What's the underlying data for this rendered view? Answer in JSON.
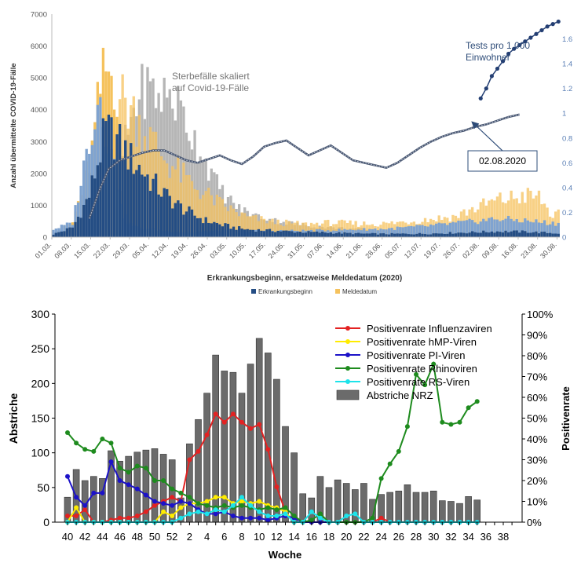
{
  "chart_data": [
    {
      "type": "bar",
      "ylabel": "Anzahl übermittelte COVID-19-Fälle",
      "xlabel": "Erkrankungsbeginn, ersatzweise Meldedatum (2020)",
      "ylim": [
        0,
        7000
      ],
      "y_ticks": [
        "0",
        "1000",
        "2000",
        "3000",
        "4000",
        "5000",
        "6000",
        "7000"
      ],
      "y2lim": [
        0,
        1.8
      ],
      "y2_ticks": [
        "0",
        "0.2",
        "0.4",
        "0.6",
        "0.8",
        "1",
        "1.2",
        "1.4",
        "1.6"
      ],
      "x_ticks": [
        "01.03.",
        "08.03.",
        "15.03.",
        "22.03.",
        "29.03.",
        "05.04.",
        "12.04.",
        "19.04.",
        "26.04.",
        "03.05.",
        "10.05.",
        "17.05.",
        "24.05.",
        "31.05.",
        "07.06.",
        "14.06.",
        "21.06.",
        "28.06.",
        "05.07.",
        "12.07.",
        "19.07.",
        "26.07.",
        "02.08.",
        "09.08.",
        "16.08.",
        "23.08.",
        "30.08."
      ],
      "legend": [
        "Erkrankungsbeginn",
        "Meldedatum"
      ],
      "colors": {
        "erkrankung": "#244d84",
        "meldedatum": "#f5c25d",
        "light_blue": "#7fa3d0",
        "sterbe": "#a9a9a9",
        "sterbe_overlap": "#c8a04b",
        "tests": "#243f73",
        "line": "#4a5872"
      },
      "annotations": {
        "sterbe": [
          "Sterbefälle skaliert",
          "auf Covid-19-Fälle"
        ],
        "tests": [
          "Tests pro 1.000",
          "Einwohner"
        ],
        "date_box": "02.08.2020"
      },
      "days": 183,
      "erkrankung_anchors": [
        [
          0,
          90
        ],
        [
          7,
          300
        ],
        [
          13,
          1300
        ],
        [
          17,
          2700
        ],
        [
          19,
          3300
        ],
        [
          22,
          3150
        ],
        [
          25,
          2800
        ],
        [
          28,
          2450
        ],
        [
          31,
          2200
        ],
        [
          35,
          1800
        ],
        [
          40,
          1350
        ],
        [
          45,
          1000
        ],
        [
          50,
          720
        ],
        [
          55,
          520
        ],
        [
          60,
          400
        ],
        [
          65,
          300
        ],
        [
          70,
          240
        ],
        [
          80,
          200
        ],
        [
          90,
          160
        ],
        [
          100,
          140
        ],
        [
          110,
          110
        ],
        [
          120,
          100
        ],
        [
          135,
          110
        ],
        [
          150,
          150
        ],
        [
          160,
          180
        ],
        [
          170,
          170
        ],
        [
          182,
          120
        ]
      ],
      "meldedatum_anchors": [
        [
          0,
          120
        ],
        [
          7,
          450
        ],
        [
          14,
          2700
        ],
        [
          17,
          4600
        ],
        [
          19,
          5200
        ],
        [
          22,
          5000
        ],
        [
          25,
          4300
        ],
        [
          28,
          4050
        ],
        [
          31,
          3600
        ],
        [
          35,
          3100
        ],
        [
          40,
          2500
        ],
        [
          45,
          2050
        ],
        [
          50,
          1650
        ],
        [
          55,
          1350
        ],
        [
          60,
          1050
        ],
        [
          65,
          820
        ],
        [
          70,
          620
        ],
        [
          80,
          470
        ],
        [
          90,
          400
        ],
        [
          100,
          450
        ],
        [
          110,
          420
        ],
        [
          120,
          420
        ],
        [
          135,
          560
        ],
        [
          145,
          650
        ],
        [
          150,
          850
        ],
        [
          160,
          1150
        ],
        [
          170,
          1300
        ],
        [
          175,
          1250
        ],
        [
          180,
          650
        ],
        [
          182,
          700
        ]
      ],
      "light_blue_anchors": [
        [
          0,
          250
        ],
        [
          7,
          450
        ],
        [
          14,
          3500
        ],
        [
          17,
          4500
        ],
        [
          19,
          3500
        ],
        [
          22,
          2200
        ],
        [
          25,
          700
        ],
        [
          28,
          400
        ],
        [
          31,
          300
        ],
        [
          40,
          200
        ],
        [
          50,
          150
        ],
        [
          60,
          200
        ],
        [
          90,
          200
        ],
        [
          120,
          260
        ],
        [
          135,
          350
        ],
        [
          150,
          480
        ],
        [
          160,
          580
        ],
        [
          170,
          520
        ],
        [
          182,
          420
        ]
      ],
      "sterbe_anchors": [
        [
          23,
          0
        ],
        [
          25,
          2600
        ],
        [
          28,
          3700
        ],
        [
          31,
          4500
        ],
        [
          34,
          4700
        ],
        [
          38,
          4400
        ],
        [
          42,
          4500
        ],
        [
          46,
          4000
        ],
        [
          50,
          3200
        ],
        [
          54,
          2600
        ],
        [
          58,
          1800
        ],
        [
          62,
          1300
        ],
        [
          67,
          900
        ],
        [
          72,
          700
        ],
        [
          80,
          520
        ],
        [
          90,
          380
        ],
        [
          100,
          300
        ],
        [
          110,
          250
        ],
        [
          120,
          200
        ],
        [
          130,
          150
        ],
        [
          140,
          100
        ],
        [
          182,
          40
        ]
      ],
      "rvalue_points": [
        [
          13,
          0.15
        ],
        [
          17,
          0.4
        ],
        [
          20,
          0.55
        ],
        [
          24,
          0.62
        ],
        [
          28,
          0.65
        ],
        [
          32,
          0.68
        ],
        [
          36,
          0.7
        ],
        [
          40,
          0.7
        ],
        [
          44,
          0.66
        ],
        [
          48,
          0.62
        ],
        [
          52,
          0.6
        ],
        [
          56,
          0.63
        ],
        [
          60,
          0.66
        ],
        [
          64,
          0.62
        ],
        [
          68,
          0.59
        ],
        [
          72,
          0.65
        ],
        [
          76,
          0.73
        ],
        [
          80,
          0.76
        ],
        [
          84,
          0.78
        ],
        [
          88,
          0.72
        ],
        [
          92,
          0.66
        ],
        [
          96,
          0.7
        ],
        [
          100,
          0.74
        ],
        [
          104,
          0.68
        ],
        [
          108,
          0.62
        ],
        [
          112,
          0.6
        ],
        [
          116,
          0.58
        ],
        [
          120,
          0.56
        ],
        [
          124,
          0.6
        ],
        [
          128,
          0.66
        ],
        [
          132,
          0.72
        ],
        [
          136,
          0.77
        ],
        [
          140,
          0.81
        ],
        [
          144,
          0.84
        ],
        [
          148,
          0.86
        ],
        [
          152,
          0.89
        ],
        [
          156,
          0.91
        ],
        [
          160,
          0.94
        ],
        [
          164,
          0.97
        ],
        [
          168,
          0.99
        ]
      ],
      "tests_points": [
        [
          154,
          1.12
        ],
        [
          156,
          1.2
        ],
        [
          158,
          1.3
        ],
        [
          160,
          1.36
        ],
        [
          162,
          1.42
        ],
        [
          164,
          1.48
        ],
        [
          166,
          1.52
        ],
        [
          168,
          1.55
        ],
        [
          170,
          1.58
        ],
        [
          172,
          1.61
        ],
        [
          174,
          1.64
        ],
        [
          176,
          1.67
        ],
        [
          178,
          1.7
        ],
        [
          180,
          1.72
        ],
        [
          182,
          1.74
        ]
      ]
    },
    {
      "type": "bar+line",
      "ylabel": "Abstriche",
      "y2label": "Positivenrate",
      "xlabel": "Woche",
      "ylim": [
        0,
        300
      ],
      "y_ticks": [
        "0",
        "50",
        "100",
        "150",
        "200",
        "250",
        "300"
      ],
      "y2_ticks": [
        "0%",
        "10%",
        "20%",
        "30%",
        "40%",
        "50%",
        "60%",
        "70%",
        "80%",
        "90%",
        "100%"
      ],
      "x_ticks": [
        "40",
        "42",
        "44",
        "46",
        "48",
        "50",
        "52",
        "2",
        "4",
        "6",
        "8",
        "10",
        "12",
        "14",
        "16",
        "18",
        "20",
        "22",
        "24",
        "26",
        "28",
        "30",
        "32",
        "34",
        "36",
        "38"
      ],
      "bar_weeks": [
        "40",
        "41",
        "42",
        "43",
        "44",
        "45",
        "46",
        "47",
        "48",
        "49",
        "50",
        "51",
        "52",
        "1",
        "2",
        "3",
        "4",
        "5",
        "6",
        "7",
        "8",
        "9",
        "10",
        "11",
        "12",
        "13",
        "14",
        "15",
        "16",
        "17",
        "18",
        "19",
        "20",
        "21",
        "22",
        "23",
        "24",
        "25",
        "26",
        "27",
        "28",
        "29",
        "30",
        "31",
        "32",
        "33",
        "34",
        "35"
      ],
      "bars": [
        36,
        76,
        60,
        66,
        63,
        103,
        88,
        95,
        101,
        104,
        106,
        98,
        90,
        35,
        113,
        148,
        186,
        241,
        218,
        216,
        186,
        228,
        265,
        244,
        206,
        138,
        100,
        41,
        35,
        66,
        50,
        61,
        56,
        47,
        56,
        33,
        40,
        43,
        45,
        54,
        43,
        43,
        45,
        31,
        30,
        27,
        37,
        32
      ],
      "series": [
        {
          "name": "Positivenrate Influenzaviren",
          "color": "#e32222",
          "values": [
            3,
            3,
            6,
            0,
            0,
            1,
            2,
            2,
            3,
            5,
            8,
            10,
            12,
            10,
            30,
            34,
            42,
            52,
            48,
            52,
            48,
            45,
            47,
            35,
            17,
            5,
            0,
            0,
            0,
            0,
            0,
            0,
            0,
            0,
            0,
            0,
            2,
            0,
            0,
            0,
            0,
            0,
            0,
            0,
            0,
            0,
            0,
            0
          ]
        },
        {
          "name": "Positivenrate hMP-Viren",
          "color": "#ffec00",
          "values": [
            0,
            7,
            0,
            0,
            0,
            0,
            0,
            0,
            0,
            0,
            0,
            5,
            3,
            7,
            9,
            9,
            10,
            12,
            12,
            9,
            10,
            9,
            10,
            8,
            7,
            5,
            0,
            0,
            0,
            0,
            0,
            0,
            0,
            0,
            0,
            0,
            0,
            0,
            0,
            0,
            0,
            0,
            0,
            0,
            0,
            0,
            0,
            0
          ]
        },
        {
          "name": "Positivenrate PI-Viren",
          "color": "#1c12c8",
          "values": [
            22,
            12,
            8,
            14,
            14,
            29,
            20,
            18,
            16,
            13,
            10,
            9,
            8,
            10,
            9,
            6,
            4,
            4,
            5,
            3,
            2,
            2,
            2,
            1,
            2,
            3,
            2,
            0,
            0,
            0,
            0,
            0,
            0,
            0,
            0,
            0,
            0,
            0,
            0,
            0,
            0,
            0,
            0,
            0,
            0,
            0,
            0,
            0
          ]
        },
        {
          "name": "Positivenrate Rhinoviren",
          "color": "#1e8b1e",
          "values": [
            43,
            38,
            35,
            34,
            40,
            38,
            26,
            24,
            27,
            26,
            20,
            20,
            16,
            14,
            12,
            9,
            8,
            7,
            8,
            7,
            8,
            7,
            6,
            7,
            6,
            7,
            3,
            0,
            1,
            4,
            0,
            0,
            0,
            0,
            0,
            2,
            21,
            28,
            34,
            46,
            71,
            66,
            76,
            48,
            47,
            48,
            55,
            58
          ]
        },
        {
          "name": "Positivenrate RS-Viren",
          "color": "#1de3ea",
          "values": [
            0,
            0,
            0,
            0,
            0,
            0,
            0,
            0,
            0,
            0,
            0,
            0,
            0,
            2,
            4,
            5,
            4,
            6,
            5,
            8,
            12,
            8,
            5,
            3,
            3,
            4,
            0,
            0,
            5,
            2,
            0,
            0,
            3,
            4,
            0,
            0,
            0,
            0,
            0,
            0,
            0,
            0,
            0,
            0,
            0,
            0,
            0,
            0
          ]
        }
      ],
      "bar_series_name": "Abstriche NRZ"
    }
  ]
}
